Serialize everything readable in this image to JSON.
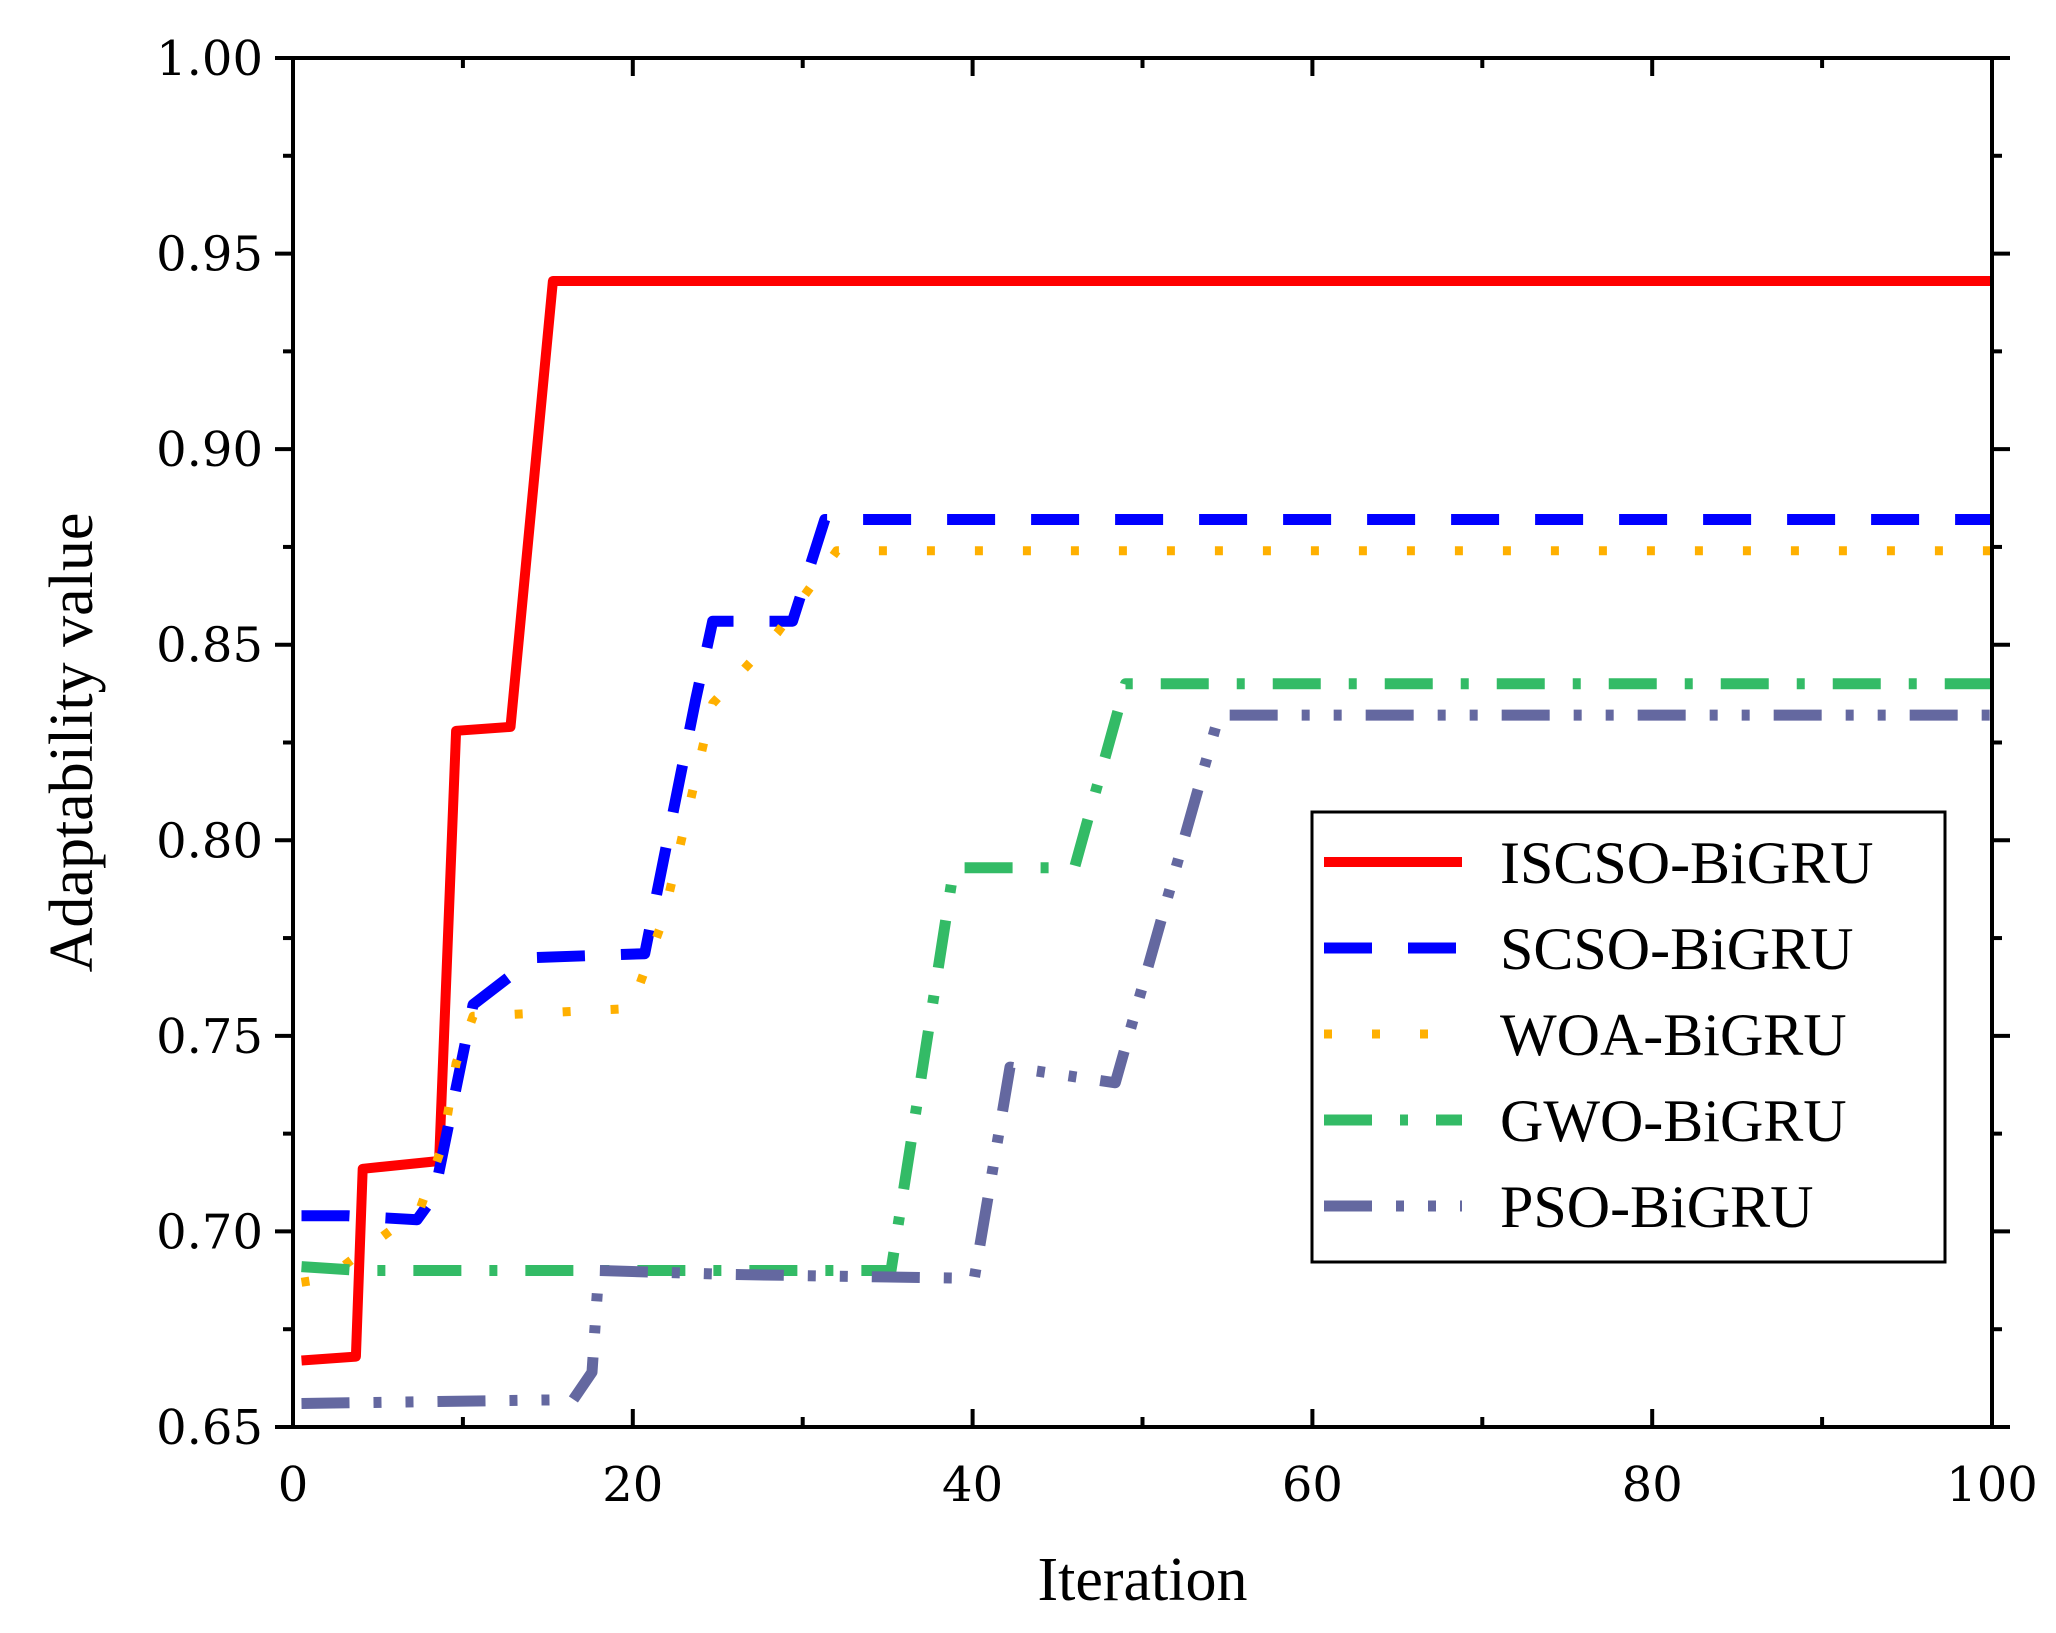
{
  "chart_data": {
    "type": "line",
    "title": "",
    "xlabel": "Iteration",
    "ylabel": "Adaptability value",
    "xlim": [
      0,
      100
    ],
    "ylim": [
      0.65,
      1.0
    ],
    "xticks": [
      0,
      20,
      40,
      60,
      80,
      100
    ],
    "xtick_labels": [
      "0",
      "20",
      "40",
      "60",
      "80",
      "100"
    ],
    "yticks": [
      0.65,
      0.7,
      0.75,
      0.8,
      0.85,
      0.9,
      0.95,
      1.0
    ],
    "ytick_labels": [
      "0.65",
      "0.70",
      "0.75",
      "0.80",
      "0.85",
      "0.90",
      "0.95",
      "1.00"
    ],
    "legend_position": "center-right",
    "series": [
      {
        "name": "ISCSO-BiGRU",
        "color": "#ff0000",
        "style": "solid",
        "x": [
          0.5,
          3.7,
          4.1,
          8.6,
          9.6,
          12.8,
          15.3,
          100
        ],
        "y": [
          0.667,
          0.668,
          0.716,
          0.718,
          0.828,
          0.829,
          0.943,
          0.943
        ]
      },
      {
        "name": "SCSO-BiGRU",
        "color": "#0000ff",
        "style": "dashed",
        "x": [
          0.5,
          3.2,
          7.3,
          8.3,
          10.6,
          14.2,
          20.7,
          23.7,
          24.7,
          29.4,
          31.3,
          100
        ],
        "y": [
          0.704,
          0.704,
          0.703,
          0.709,
          0.758,
          0.77,
          0.771,
          0.836,
          0.856,
          0.856,
          0.882,
          0.882
        ]
      },
      {
        "name": "WOA-BiGRU",
        "color": "#ffb000",
        "style": "dotted",
        "x": [
          0.5,
          2.0,
          7.5,
          8.8,
          9.6,
          10.6,
          19.9,
          21.8,
          24.7,
          28.5,
          32.0,
          100
        ],
        "y": [
          0.687,
          0.688,
          0.706,
          0.722,
          0.743,
          0.755,
          0.757,
          0.78,
          0.835,
          0.853,
          0.874,
          0.874
        ]
      },
      {
        "name": "GWO-BiGRU",
        "color": "#33bb66",
        "style": "dashdot",
        "x": [
          0.5,
          4.0,
          20.0,
          35.2,
          38.9,
          46.0,
          49.0,
          100
        ],
        "y": [
          0.691,
          0.69,
          0.69,
          0.69,
          0.793,
          0.793,
          0.84,
          0.84
        ]
      },
      {
        "name": "PSO-BiGRU",
        "color": "#6468a0",
        "style": "dashdotdot",
        "x": [
          0.5,
          16.5,
          17.6,
          18.0,
          26.0,
          40.1,
          42.2,
          48.4,
          54.5,
          100
        ],
        "y": [
          0.656,
          0.657,
          0.664,
          0.69,
          0.689,
          0.688,
          0.742,
          0.738,
          0.832,
          0.832
        ]
      }
    ]
  }
}
